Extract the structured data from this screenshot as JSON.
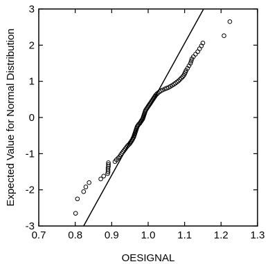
{
  "chart_data": {
    "type": "scatter",
    "title": "",
    "xlabel": "OESIGNAL",
    "ylabel": "Expected Value for Normal Distribution",
    "xlim": [
      0.7,
      1.3
    ],
    "ylim": [
      -3,
      3
    ],
    "grid": false,
    "xticks": [
      0.7,
      0.8,
      0.9,
      1.0,
      1.1,
      1.2,
      1.3
    ],
    "xtick_labels": [
      "0.7",
      "0.8",
      "0.9",
      "1.0",
      "1.1",
      "1.2",
      "1.3"
    ],
    "yticks": [
      -3,
      -2,
      -1,
      0,
      1,
      2,
      3
    ],
    "ytick_labels": [
      "-3",
      "-2",
      "-1",
      "0",
      "1",
      "2",
      "3"
    ],
    "marker": "open-circle",
    "marker_color": "#000000",
    "reference_line": {
      "x": [
        0.823,
        1.152
      ],
      "y": [
        -3,
        3
      ]
    },
    "points": [
      [
        0.801,
        -2.65
      ],
      [
        0.806,
        -2.25
      ],
      [
        0.823,
        -2.05
      ],
      [
        0.829,
        -1.92
      ],
      [
        0.838,
        -1.8
      ],
      [
        0.87,
        -1.7
      ],
      [
        0.878,
        -1.62
      ],
      [
        0.889,
        -1.55
      ],
      [
        0.89,
        -1.5
      ],
      [
        0.89,
        -1.45
      ],
      [
        0.89,
        -1.4
      ],
      [
        0.891,
        -1.35
      ],
      [
        0.891,
        -1.3
      ],
      [
        0.891,
        -1.25
      ],
      [
        0.909,
        -1.22
      ],
      [
        0.913,
        -1.17
      ],
      [
        0.918,
        -1.12
      ],
      [
        0.922,
        -1.08
      ],
      [
        0.925,
        -1.03
      ],
      [
        0.928,
        -0.99
      ],
      [
        0.931,
        -0.95
      ],
      [
        0.934,
        -0.91
      ],
      [
        0.937,
        -0.87
      ],
      [
        0.94,
        -0.83
      ],
      [
        0.943,
        -0.79
      ],
      [
        0.946,
        -0.76
      ],
      [
        0.949,
        -0.73
      ],
      [
        0.951,
        -0.7
      ],
      [
        0.953,
        -0.67
      ],
      [
        0.955,
        -0.64
      ],
      [
        0.957,
        -0.61
      ],
      [
        0.958,
        -0.58
      ],
      [
        0.96,
        -0.55
      ],
      [
        0.961,
        -0.52
      ],
      [
        0.962,
        -0.49
      ],
      [
        0.963,
        -0.46
      ],
      [
        0.964,
        -0.43
      ],
      [
        0.965,
        -0.4
      ],
      [
        0.966,
        -0.37
      ],
      [
        0.967,
        -0.34
      ],
      [
        0.968,
        -0.31
      ],
      [
        0.969,
        -0.28
      ],
      [
        0.97,
        -0.25
      ],
      [
        0.972,
        -0.22
      ],
      [
        0.974,
        -0.19
      ],
      [
        0.977,
        -0.16
      ],
      [
        0.979,
        -0.13
      ],
      [
        0.981,
        -0.1
      ],
      [
        0.983,
        -0.07
      ],
      [
        0.985,
        -0.04
      ],
      [
        0.986,
        -0.01
      ],
      [
        0.987,
        0.02
      ],
      [
        0.988,
        0.05
      ],
      [
        0.989,
        0.08
      ],
      [
        0.99,
        0.11
      ],
      [
        0.991,
        0.14
      ],
      [
        0.992,
        0.17
      ],
      [
        0.993,
        0.2
      ],
      [
        0.995,
        0.23
      ],
      [
        0.997,
        0.26
      ],
      [
        0.999,
        0.29
      ],
      [
        1.001,
        0.32
      ],
      [
        1.003,
        0.35
      ],
      [
        1.005,
        0.38
      ],
      [
        1.007,
        0.41
      ],
      [
        1.009,
        0.44
      ],
      [
        1.011,
        0.47
      ],
      [
        1.013,
        0.5
      ],
      [
        1.015,
        0.53
      ],
      [
        1.017,
        0.56
      ],
      [
        1.019,
        0.59
      ],
      [
        1.021,
        0.62
      ],
      [
        1.024,
        0.65
      ],
      [
        1.027,
        0.68
      ],
      [
        1.031,
        0.71
      ],
      [
        1.035,
        0.74
      ],
      [
        1.04,
        0.76
      ],
      [
        1.046,
        0.79
      ],
      [
        1.051,
        0.81
      ],
      [
        1.056,
        0.83
      ],
      [
        1.061,
        0.86
      ],
      [
        1.066,
        0.89
      ],
      [
        1.071,
        0.92
      ],
      [
        1.075,
        0.95
      ],
      [
        1.079,
        0.98
      ],
      [
        1.083,
        1.01
      ],
      [
        1.087,
        1.05
      ],
      [
        1.091,
        1.09
      ],
      [
        1.095,
        1.13
      ],
      [
        1.098,
        1.17
      ],
      [
        1.1,
        1.21
      ],
      [
        1.102,
        1.25
      ],
      [
        1.104,
        1.3
      ],
      [
        1.108,
        1.36
      ],
      [
        1.112,
        1.43
      ],
      [
        1.116,
        1.5
      ],
      [
        1.118,
        1.56
      ],
      [
        1.12,
        1.62
      ],
      [
        1.124,
        1.68
      ],
      [
        1.13,
        1.75
      ],
      [
        1.136,
        1.82
      ],
      [
        1.141,
        1.9
      ],
      [
        1.146,
        1.98
      ],
      [
        1.15,
        2.06
      ],
      [
        1.208,
        2.26
      ],
      [
        1.224,
        2.65
      ]
    ]
  }
}
